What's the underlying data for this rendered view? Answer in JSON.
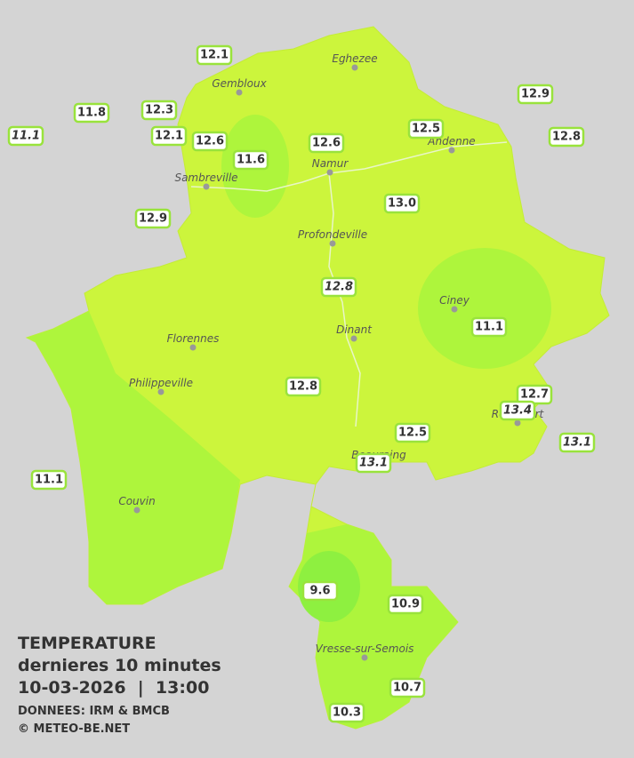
{
  "cities": [
    {
      "name": "Eghezee"
    },
    {
      "name": "Gembloux"
    },
    {
      "name": "Andenne"
    },
    {
      "name": "Namur"
    },
    {
      "name": "Sambreville"
    },
    {
      "name": "Profondeville"
    },
    {
      "name": "Ciney"
    },
    {
      "name": "Dinant"
    },
    {
      "name": "Florennes"
    },
    {
      "name": "Philippeville"
    },
    {
      "name": "Rochefort"
    },
    {
      "name": "Beauraing"
    },
    {
      "name": "Couvin"
    },
    {
      "name": "Vresse-sur-Semois"
    }
  ],
  "stations": [
    {
      "value": "12.1"
    },
    {
      "value": "11.8"
    },
    {
      "value": "12.3"
    },
    {
      "value": "11.1",
      "style": "italic"
    },
    {
      "value": "12.1"
    },
    {
      "value": "12.6"
    },
    {
      "value": "11.6"
    },
    {
      "value": "12.6"
    },
    {
      "value": "12.5"
    },
    {
      "value": "12.9"
    },
    {
      "value": "12.8"
    },
    {
      "value": "13.0"
    },
    {
      "value": "12.9"
    },
    {
      "value": "12.8",
      "style": "italic"
    },
    {
      "value": "11.1"
    },
    {
      "value": "12.8"
    },
    {
      "value": "12.7"
    },
    {
      "value": "13.4",
      "style": "italic"
    },
    {
      "value": "13.1",
      "style": "italic"
    },
    {
      "value": "12.5"
    },
    {
      "value": "13.1",
      "style": "italic"
    },
    {
      "value": "11.1"
    },
    {
      "value": "9.6"
    },
    {
      "value": "10.9"
    },
    {
      "value": "10.7"
    },
    {
      "value": "10.3"
    }
  ],
  "legend": {
    "title": "TEMPERATURE",
    "subtitle": "dernieres 10 minutes",
    "datetime": "10-03-2026  |  13:00",
    "source": "DONNEES: IRM & BMCB",
    "copyright": "© METEO-BE.NET"
  }
}
